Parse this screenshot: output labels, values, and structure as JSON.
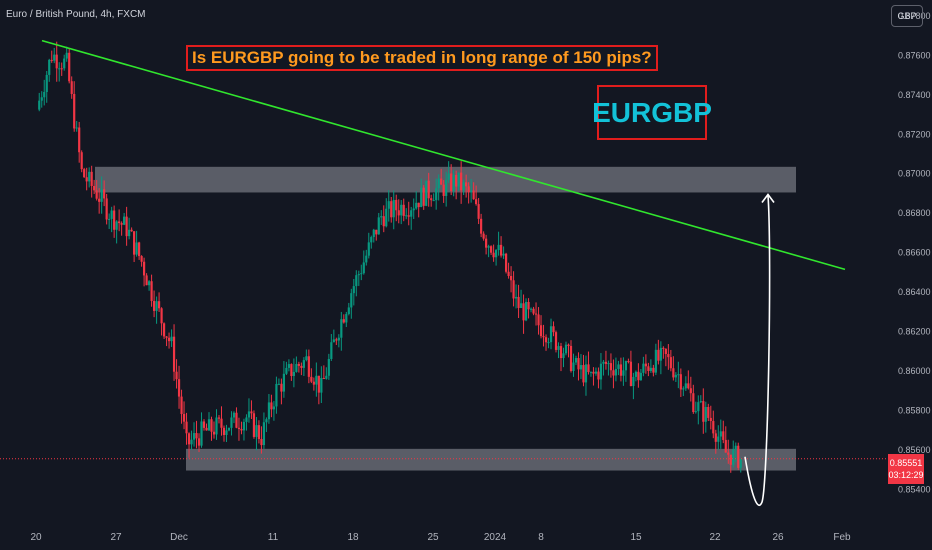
{
  "header": {
    "symbol_title": "Euro / British Pound, 4h, FXCM",
    "currency_button": "GBP"
  },
  "annotations": {
    "question": "Is EURGBP going to be traded in long range of 150 pips?",
    "symbol": "EURGBP"
  },
  "price_badge": {
    "price": "0.85551",
    "countdown": "03:12:29"
  },
  "colors": {
    "background": "#131722",
    "up_candle": "#089981",
    "down_candle": "#f23645",
    "trendline": "#31e62e",
    "zone": "#9598a1",
    "accent_red": "#e11d1d",
    "question_text": "#ff9a1f",
    "symbol_text": "#13c2d8"
  },
  "chart_data": {
    "type": "candlestick",
    "title": "Euro / British Pound, 4h, FXCM",
    "xlabel": "",
    "ylabel": "",
    "ylim": [
      0.853,
      0.8781
    ],
    "y_ticks": [
      "0.87800",
      "0.87600",
      "0.87400",
      "0.87200",
      "0.87000",
      "0.86800",
      "0.86600",
      "0.86400",
      "0.86200",
      "0.86000",
      "0.85800",
      "0.85600",
      "0.85400"
    ],
    "x_ticks": [
      "20",
      "27",
      "Dec",
      "11",
      "18",
      "25",
      "2024",
      "8",
      "15",
      "22",
      "26",
      "Feb"
    ],
    "price_path": [
      [
        "20",
        0.8732
      ],
      [
        "21",
        0.876
      ],
      [
        "22",
        0.8755
      ],
      [
        "23",
        0.87
      ],
      [
        "24",
        0.869
      ],
      [
        "27",
        0.8678
      ],
      [
        "28",
        0.8672
      ],
      [
        "29",
        0.8655
      ],
      [
        "30",
        0.8632
      ],
      [
        "Dec",
        0.8612
      ],
      [
        "4",
        0.8562
      ],
      [
        "5",
        0.8568
      ],
      [
        "6",
        0.8571
      ],
      [
        "7",
        0.8573
      ],
      [
        "8",
        0.8576
      ],
      [
        "11",
        0.8566
      ],
      [
        "12",
        0.859
      ],
      [
        "13",
        0.86
      ],
      [
        "14",
        0.8605
      ],
      [
        "15",
        0.859
      ],
      [
        "18",
        0.8618
      ],
      [
        "19",
        0.864
      ],
      [
        "20",
        0.8658
      ],
      [
        "21",
        0.8678
      ],
      [
        "22",
        0.8682
      ],
      [
        "25",
        0.8684
      ],
      [
        "26",
        0.869
      ],
      [
        "27",
        0.8692
      ],
      [
        "28",
        0.8696
      ],
      [
        "29",
        0.8688
      ],
      [
        "2024",
        0.8666
      ],
      [
        "2",
        0.8658
      ],
      [
        "3",
        0.8634
      ],
      [
        "4",
        0.8626
      ],
      [
        "5",
        0.862
      ],
      [
        "8",
        0.8612
      ],
      [
        "9",
        0.8601
      ],
      [
        "10",
        0.8596
      ],
      [
        "11",
        0.8603
      ],
      [
        "12",
        0.8601
      ],
      [
        "15",
        0.8596
      ],
      [
        "16",
        0.8604
      ],
      [
        "17",
        0.8606
      ],
      [
        "18",
        0.8596
      ],
      [
        "19",
        0.8582
      ],
      [
        "22",
        0.8575
      ],
      [
        "23",
        0.8558
      ],
      [
        "24",
        0.8555
      ]
    ],
    "last_price": 0.85551,
    "current_price_line": 0.8555,
    "zones": [
      {
        "from": 0.869,
        "to": 0.8703
      },
      {
        "from": 0.8549,
        "to": 0.856
      }
    ],
    "trendline": {
      "from": [
        "21",
        0.8767
      ],
      "to": [
        "Feb",
        0.8651
      ]
    },
    "projection_arrow": {
      "from": 0.8556,
      "low": 0.8532,
      "to": 0.869
    },
    "grid": false,
    "legend": "none"
  }
}
